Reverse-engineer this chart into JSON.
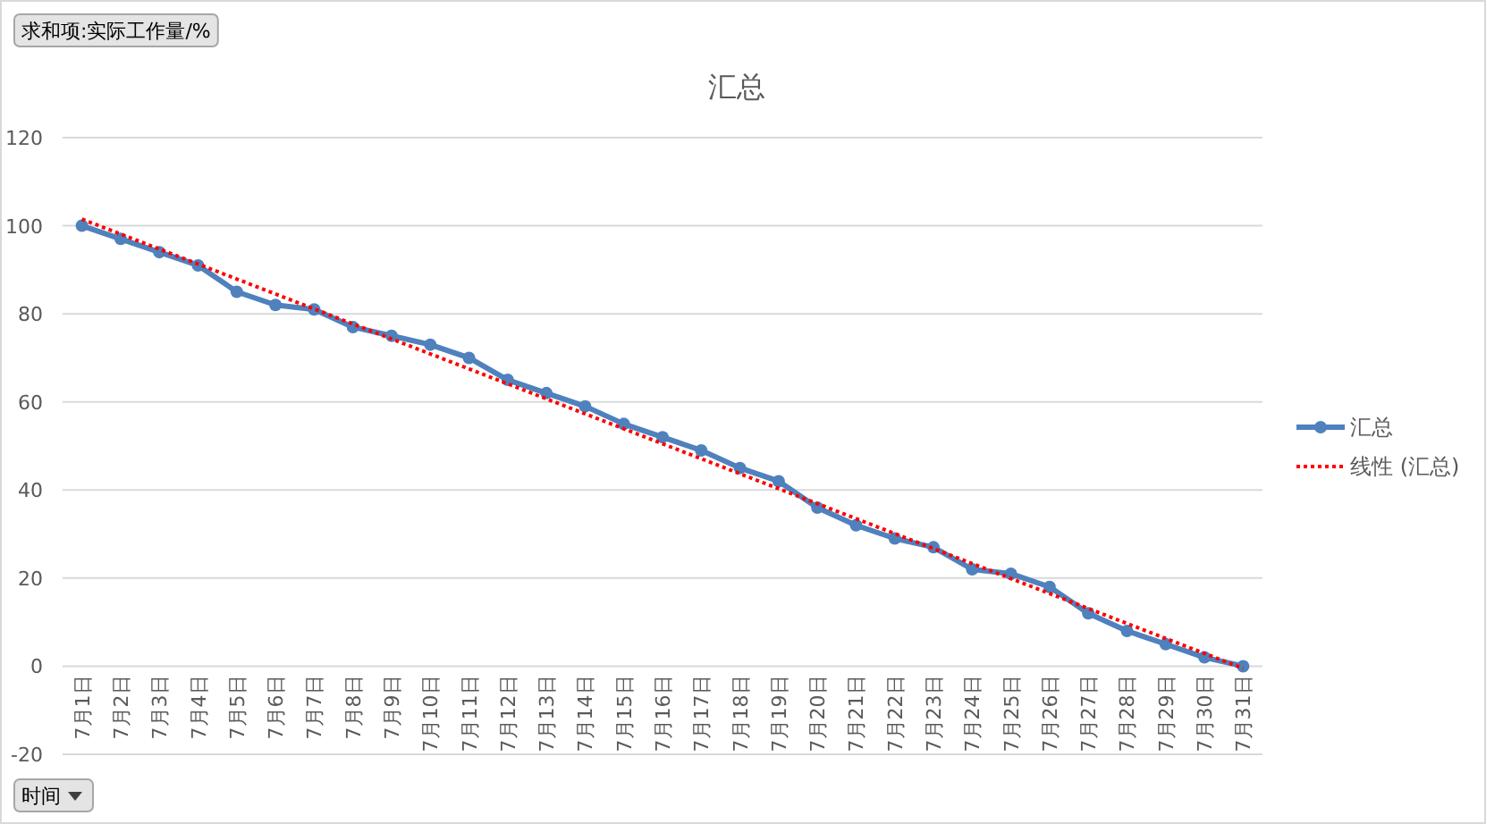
{
  "chart_data": {
    "type": "line",
    "title": "汇总",
    "categories": [
      "7月1日",
      "7月2日",
      "7月3日",
      "7月4日",
      "7月5日",
      "7月6日",
      "7月7日",
      "7月8日",
      "7月9日",
      "7月10日",
      "7月11日",
      "7月12日",
      "7月13日",
      "7月14日",
      "7月15日",
      "7月16日",
      "7月17日",
      "7月18日",
      "7月19日",
      "7月20日",
      "7月21日",
      "7月22日",
      "7月23日",
      "7月24日",
      "7月25日",
      "7月26日",
      "7月27日",
      "7月28日",
      "7月29日",
      "7月30日",
      "7月31日"
    ],
    "series": [
      {
        "name": "汇总",
        "color": "#4f81bd",
        "marker": "circle",
        "line_style": "solid",
        "values": [
          100,
          97,
          94,
          91,
          85,
          82,
          81,
          77,
          75,
          73,
          70,
          65,
          62,
          59,
          55,
          52,
          49,
          45,
          42,
          36,
          32,
          29,
          27,
          22,
          21,
          18,
          12,
          8,
          5,
          2,
          0
        ]
      },
      {
        "name": "线性 (汇总)",
        "color": "#ff0000",
        "marker": "none",
        "line_style": "dotted",
        "x": [
          "7月1日",
          "7月31日"
        ],
        "values": [
          101.5,
          -0.5
        ]
      }
    ],
    "ylim": [
      -20,
      120
    ],
    "yticks": [
      -20,
      0,
      20,
      40,
      60,
      80,
      100,
      120
    ],
    "grid": "y",
    "legend": "right",
    "annotations": [
      "求和项:实际工作量/%",
      "时间"
    ]
  }
}
